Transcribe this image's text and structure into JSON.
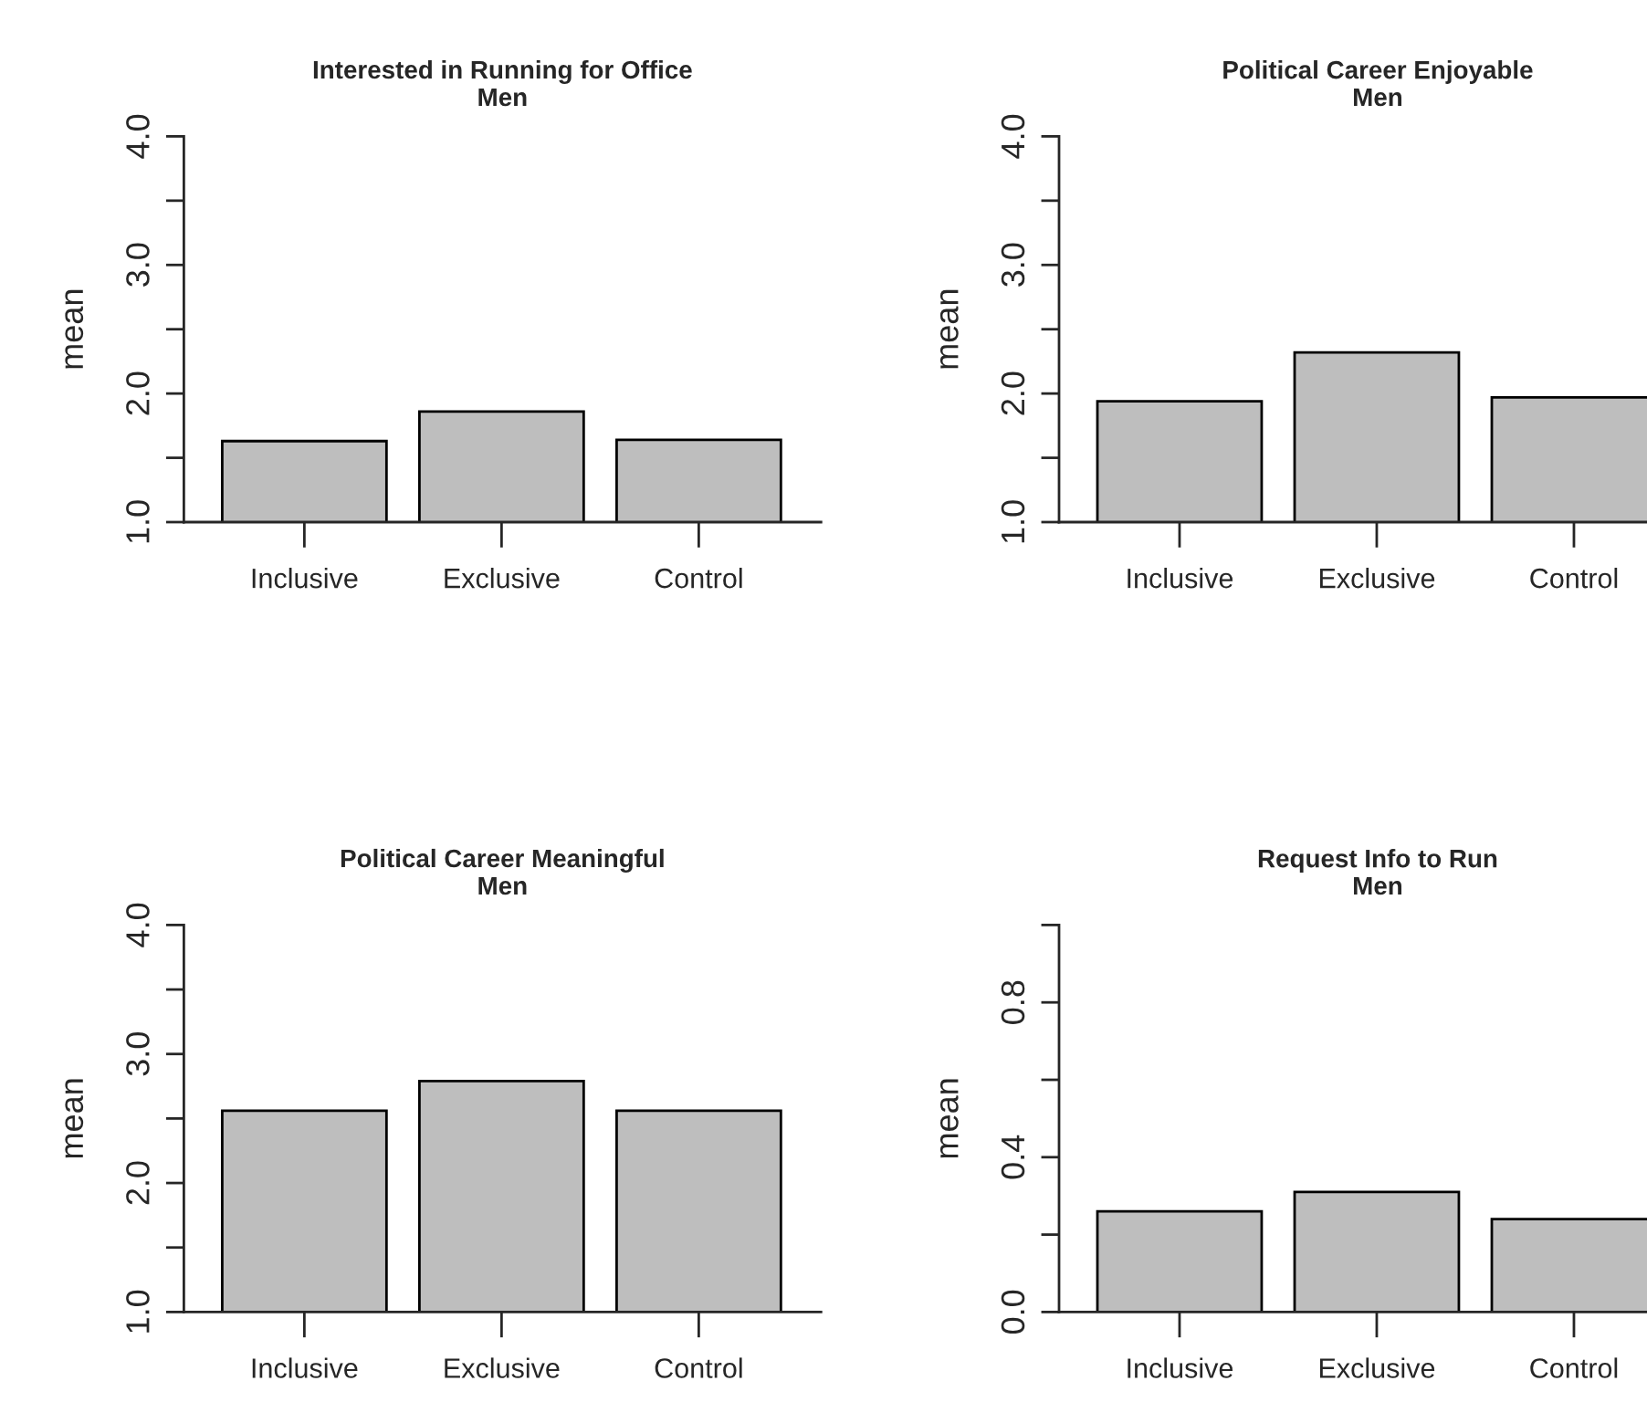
{
  "chart_data": [
    {
      "type": "bar",
      "title": "Interested in Running for Office",
      "subtitle": "Men",
      "ylabel": "mean",
      "categories": [
        "Inclusive",
        "Exclusive",
        "Control"
      ],
      "values": [
        1.63,
        1.86,
        1.64
      ],
      "color": "#bebebe",
      "ylim": [
        1,
        4
      ],
      "yticks": [
        {
          "value": 1,
          "label": "1.0"
        },
        {
          "value": 1.5,
          "label": null
        },
        {
          "value": 2,
          "label": "2.0"
        },
        {
          "value": 2.5,
          "label": null
        },
        {
          "value": 3,
          "label": "3.0"
        },
        {
          "value": 3.5,
          "label": null
        },
        {
          "value": 4,
          "label": "4.0"
        }
      ]
    },
    {
      "type": "bar",
      "title": "Political Career Enjoyable",
      "subtitle": "Men",
      "ylabel": "mean",
      "categories": [
        "Inclusive",
        "Exclusive",
        "Control"
      ],
      "values": [
        1.94,
        2.32,
        1.97
      ],
      "color": "#bebebe",
      "ylim": [
        1,
        4
      ],
      "yticks": [
        {
          "value": 1,
          "label": "1.0"
        },
        {
          "value": 1.5,
          "label": null
        },
        {
          "value": 2,
          "label": "2.0"
        },
        {
          "value": 2.5,
          "label": null
        },
        {
          "value": 3,
          "label": "3.0"
        },
        {
          "value": 3.5,
          "label": null
        },
        {
          "value": 4,
          "label": "4.0"
        }
      ]
    },
    {
      "type": "bar",
      "title": "Political Career Meaningful",
      "subtitle": "Men",
      "ylabel": "mean",
      "categories": [
        "Inclusive",
        "Exclusive",
        "Control"
      ],
      "values": [
        2.56,
        2.79,
        2.56
      ],
      "color": "#bebebe",
      "ylim": [
        1,
        4
      ],
      "yticks": [
        {
          "value": 1,
          "label": "1.0"
        },
        {
          "value": 1.5,
          "label": null
        },
        {
          "value": 2,
          "label": "2.0"
        },
        {
          "value": 2.5,
          "label": null
        },
        {
          "value": 3,
          "label": "3.0"
        },
        {
          "value": 3.5,
          "label": null
        },
        {
          "value": 4,
          "label": "4.0"
        }
      ]
    },
    {
      "type": "bar",
      "title": "Request Info to Run",
      "subtitle": "Men",
      "ylabel": "mean",
      "categories": [
        "Inclusive",
        "Exclusive",
        "Control"
      ],
      "values": [
        0.26,
        0.31,
        0.24
      ],
      "color": "#bebebe",
      "ylim": [
        0,
        1
      ],
      "yticks": [
        {
          "value": 0,
          "label": "0.0"
        },
        {
          "value": 0.2,
          "label": null
        },
        0.4,
        {
          "value": 0.6,
          "label": null
        },
        0.8,
        {
          "value": 1.0,
          "label": null
        }
      ]
    }
  ]
}
